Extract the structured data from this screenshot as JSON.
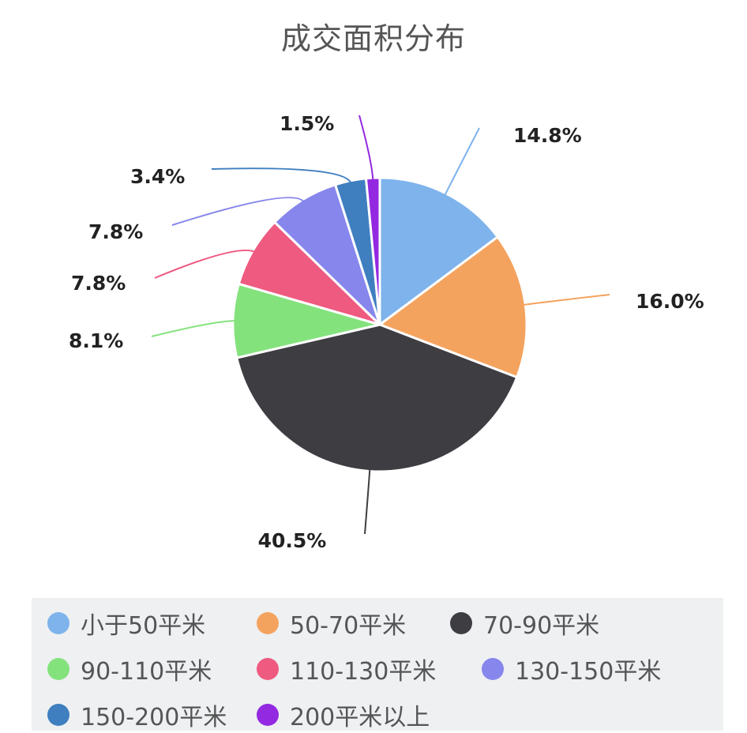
{
  "chart_data": {
    "type": "pie",
    "title": "成交面积分布",
    "slices": [
      {
        "label": "小于50平米",
        "value": 14.8,
        "value_label": "14.8%",
        "color": "#7eb3ec"
      },
      {
        "label": "50-70平米",
        "value": 16.0,
        "value_label": "16.0%",
        "color": "#f4a35e"
      },
      {
        "label": "70-90平米",
        "value": 40.5,
        "value_label": "40.5%",
        "color": "#3d3d42"
      },
      {
        "label": "90-110平米",
        "value": 8.1,
        "value_label": "8.1%",
        "color": "#84e27d"
      },
      {
        "label": "110-130平米",
        "value": 7.8,
        "value_label": "7.8%",
        "color": "#ef5a80"
      },
      {
        "label": "130-150平米",
        "value": 7.8,
        "value_label": "7.8%",
        "color": "#8686ec"
      },
      {
        "label": "150-200平米",
        "value": 3.4,
        "value_label": "3.4%",
        "color": "#3f7fc0"
      },
      {
        "label": "200平米以上",
        "value": 1.5,
        "value_label": "1.5%",
        "color": "#9329e0"
      }
    ],
    "start_angle": "top, clockwise",
    "legend_position": "bottom"
  }
}
